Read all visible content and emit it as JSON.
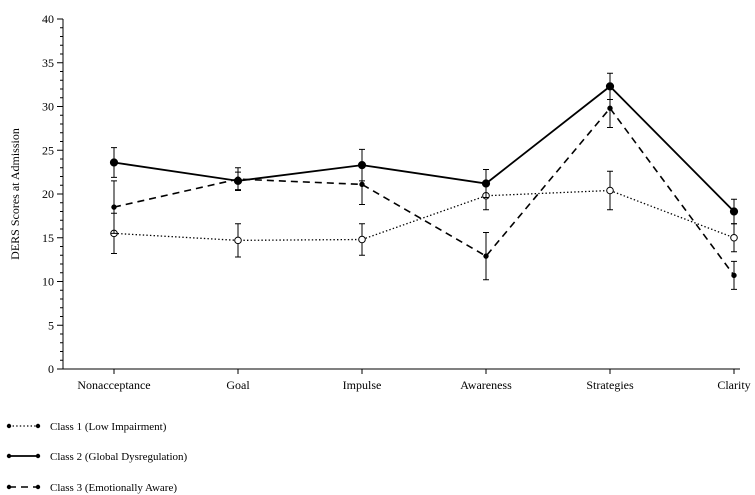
{
  "chart_data": {
    "type": "line",
    "title": "",
    "xlabel": "",
    "ylabel": "DERS Scores at Admission",
    "ylim": [
      0,
      40
    ],
    "yticks": [
      0,
      5,
      10,
      15,
      20,
      25,
      30,
      35,
      40
    ],
    "categories": [
      "Nonacceptance",
      "Goal",
      "Impulse",
      "Awareness",
      "Strategies",
      "Clarity"
    ],
    "grid": false,
    "legend_position": "bottom-left",
    "series": [
      {
        "name": "Class 1 (Low Impairment)",
        "line_style": "dotted",
        "marker": "open-circle",
        "values": [
          15.5,
          14.7,
          14.8,
          19.8,
          20.4,
          15.0
        ],
        "error": [
          2.3,
          1.9,
          1.8,
          1.6,
          2.2,
          1.6
        ]
      },
      {
        "name": "Class 2 (Global Dysregulation)",
        "line_style": "solid",
        "marker": "filled-circle",
        "values": [
          23.6,
          21.5,
          23.3,
          21.2,
          32.3,
          18.0
        ],
        "error": [
          1.7,
          1.0,
          1.8,
          1.6,
          1.5,
          1.4
        ]
      },
      {
        "name": "Class 3 (Emotionally Aware)",
        "line_style": "dashed",
        "marker": "small-filled-circle",
        "values": [
          18.5,
          21.7,
          21.1,
          12.9,
          29.8,
          10.7
        ],
        "error": [
          3.0,
          1.3,
          2.3,
          2.7,
          2.2,
          1.6
        ]
      }
    ]
  }
}
